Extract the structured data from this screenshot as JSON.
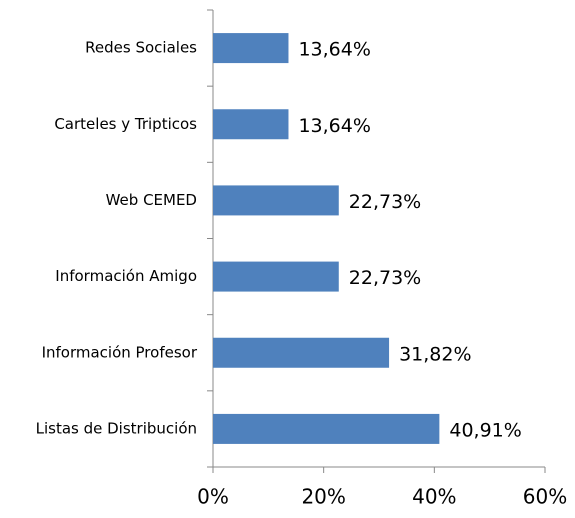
{
  "chart_data": {
    "type": "bar",
    "orientation": "horizontal",
    "categories": [
      "Redes Sociales",
      "Carteles y Tripticos",
      "Web CEMED",
      "Información Amigo",
      "Información Profesor",
      "Listas de Distribución"
    ],
    "values": [
      13.64,
      13.64,
      22.73,
      22.73,
      31.82,
      40.91
    ],
    "value_labels": [
      "13,64%",
      "13,64%",
      "22,73%",
      "22,73%",
      "31,82%",
      "40,91%"
    ],
    "color": "#4f81bd",
    "xlim": [
      0,
      60
    ],
    "xticks": [
      {
        "value": 0,
        "label": "0%"
      },
      {
        "value": 20,
        "label": "20%"
      },
      {
        "value": 40,
        "label": "40%"
      },
      {
        "value": 60,
        "label": "60%"
      }
    ]
  }
}
